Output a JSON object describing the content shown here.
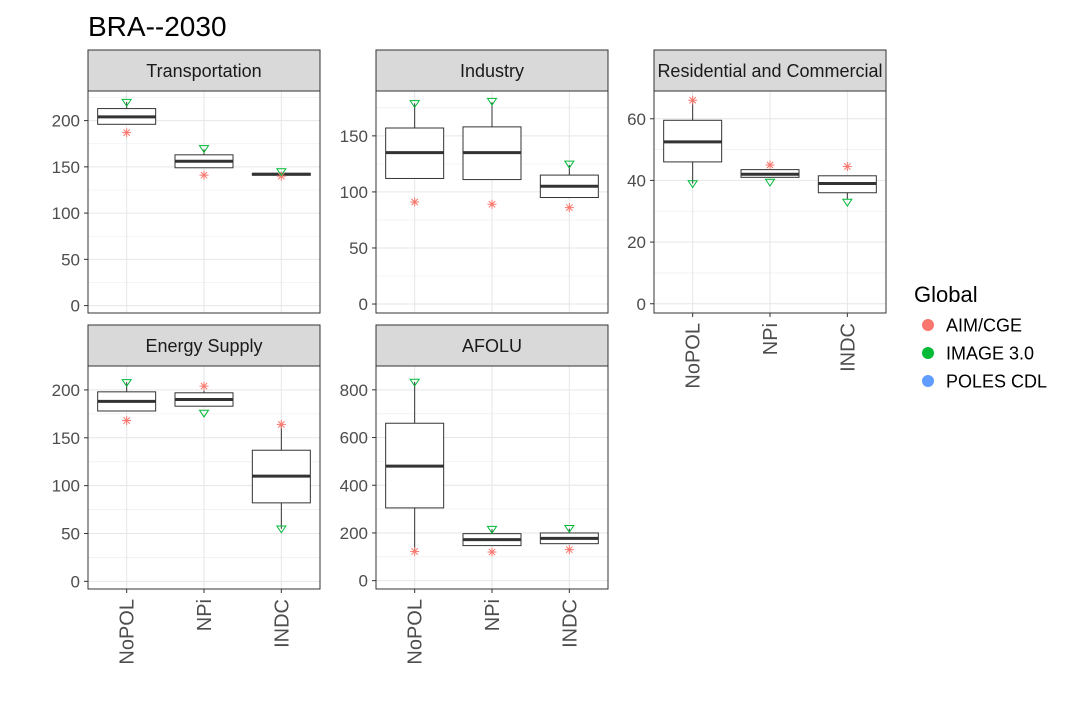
{
  "chart_data": {
    "type": "box",
    "title": "BRA--2030",
    "categories": [
      "NoPOL",
      "NPi",
      "INDC"
    ],
    "legend": {
      "title": "Global",
      "position": "right",
      "entries": [
        {
          "name": "AIM/CGE",
          "color": "#F8766D",
          "shape": "asterisk"
        },
        {
          "name": "IMAGE 3.0",
          "color": "#00BA38",
          "shape": "triangle-down"
        },
        {
          "name": "POLES CDL",
          "color": "#619CFF",
          "shape": "circle"
        }
      ]
    },
    "panels": [
      {
        "name": "Transportation",
        "yticks": [
          0,
          50,
          100,
          150,
          200
        ],
        "ylim": [
          -8,
          232
        ],
        "boxes": [
          {
            "category": "NoPOL",
            "min": 196,
            "q1": 196,
            "median": 204,
            "q3": 213,
            "max": 220
          },
          {
            "category": "NPi",
            "min": 149,
            "q1": 149,
            "median": 156,
            "q3": 163,
            "max": 169
          },
          {
            "category": "INDC",
            "min": 141,
            "q1": 141,
            "median": 142,
            "q3": 143,
            "max": 144
          }
        ],
        "points": [
          {
            "category": "NoPOL",
            "model": "AIM/CGE",
            "value": 187
          },
          {
            "category": "NoPOL",
            "model": "IMAGE 3.0",
            "value": 220
          },
          {
            "category": "NPi",
            "model": "AIM/CGE",
            "value": 141
          },
          {
            "category": "NPi",
            "model": "IMAGE 3.0",
            "value": 170
          },
          {
            "category": "INDC",
            "model": "AIM/CGE",
            "value": 140
          },
          {
            "category": "INDC",
            "model": "IMAGE 3.0",
            "value": 145
          }
        ]
      },
      {
        "name": "Industry",
        "yticks": [
          0,
          50,
          100,
          150
        ],
        "ylim": [
          -8,
          190
        ],
        "boxes": [
          {
            "category": "NoPOL",
            "min": 112,
            "q1": 112,
            "median": 135,
            "q3": 157,
            "max": 179
          },
          {
            "category": "NPi",
            "min": 111,
            "q1": 111,
            "median": 135,
            "q3": 158,
            "max": 180
          },
          {
            "category": "INDC",
            "min": 95,
            "q1": 95,
            "median": 105,
            "q3": 115,
            "max": 124
          }
        ],
        "points": [
          {
            "category": "NoPOL",
            "model": "AIM/CGE",
            "value": 91
          },
          {
            "category": "NoPOL",
            "model": "IMAGE 3.0",
            "value": 179
          },
          {
            "category": "NPi",
            "model": "AIM/CGE",
            "value": 89
          },
          {
            "category": "NPi",
            "model": "IMAGE 3.0",
            "value": 181
          },
          {
            "category": "INDC",
            "model": "AIM/CGE",
            "value": 86
          },
          {
            "category": "INDC",
            "model": "IMAGE 3.0",
            "value": 125
          }
        ]
      },
      {
        "name": "Residential and Commercial",
        "yticks": [
          0,
          20,
          40,
          60
        ],
        "ylim": [
          -3,
          69
        ],
        "boxes": [
          {
            "category": "NoPOL",
            "min": 39,
            "q1": 46,
            "median": 52.5,
            "q3": 59.5,
            "max": 66
          },
          {
            "category": "NPi",
            "min": 41,
            "q1": 41,
            "median": 42,
            "q3": 43.5,
            "max": 44.5
          },
          {
            "category": "INDC",
            "min": 34,
            "q1": 36,
            "median": 39,
            "q3": 41.5,
            "max": 41.5
          }
        ],
        "points": [
          {
            "category": "NoPOL",
            "model": "AIM/CGE",
            "value": 66
          },
          {
            "category": "NoPOL",
            "model": "IMAGE 3.0",
            "value": 39
          },
          {
            "category": "NPi",
            "model": "AIM/CGE",
            "value": 45
          },
          {
            "category": "NPi",
            "model": "IMAGE 3.0",
            "value": 39.5
          },
          {
            "category": "INDC",
            "model": "AIM/CGE",
            "value": 44.5
          },
          {
            "category": "INDC",
            "model": "IMAGE 3.0",
            "value": 33
          }
        ]
      },
      {
        "name": "Energy Supply",
        "yticks": [
          0,
          50,
          100,
          150,
          200
        ],
        "ylim": [
          -8,
          225
        ],
        "boxes": [
          {
            "category": "NoPOL",
            "min": 178,
            "q1": 178,
            "median": 188,
            "q3": 198,
            "max": 208
          },
          {
            "category": "NPi",
            "min": 183,
            "q1": 183,
            "median": 190,
            "q3": 197,
            "max": 204
          },
          {
            "category": "INDC",
            "min": 55,
            "q1": 82,
            "median": 110,
            "q3": 137,
            "max": 164
          }
        ],
        "points": [
          {
            "category": "NoPOL",
            "model": "AIM/CGE",
            "value": 168
          },
          {
            "category": "NoPOL",
            "model": "IMAGE 3.0",
            "value": 208
          },
          {
            "category": "NPi",
            "model": "AIM/CGE",
            "value": 204
          },
          {
            "category": "NPi",
            "model": "IMAGE 3.0",
            "value": 176
          },
          {
            "category": "INDC",
            "model": "AIM/CGE",
            "value": 164
          },
          {
            "category": "INDC",
            "model": "IMAGE 3.0",
            "value": 55
          }
        ]
      },
      {
        "name": "AFOLU",
        "yticks": [
          0,
          200,
          400,
          600,
          800
        ],
        "ylim": [
          -35,
          900
        ],
        "boxes": [
          {
            "category": "NoPOL",
            "min": 125,
            "q1": 305,
            "median": 480,
            "q3": 660,
            "max": 833
          },
          {
            "category": "NPi",
            "min": 147,
            "q1": 147,
            "median": 172,
            "q3": 197,
            "max": 216
          },
          {
            "category": "INDC",
            "min": 155,
            "q1": 155,
            "median": 177,
            "q3": 200,
            "max": 218
          }
        ],
        "points": [
          {
            "category": "NoPOL",
            "model": "AIM/CGE",
            "value": 122
          },
          {
            "category": "NoPOL",
            "model": "IMAGE 3.0",
            "value": 833
          },
          {
            "category": "NPi",
            "model": "AIM/CGE",
            "value": 120
          },
          {
            "category": "NPi",
            "model": "IMAGE 3.0",
            "value": 216
          },
          {
            "category": "INDC",
            "model": "AIM/CGE",
            "value": 130
          },
          {
            "category": "INDC",
            "model": "IMAGE 3.0",
            "value": 220
          }
        ]
      }
    ]
  }
}
